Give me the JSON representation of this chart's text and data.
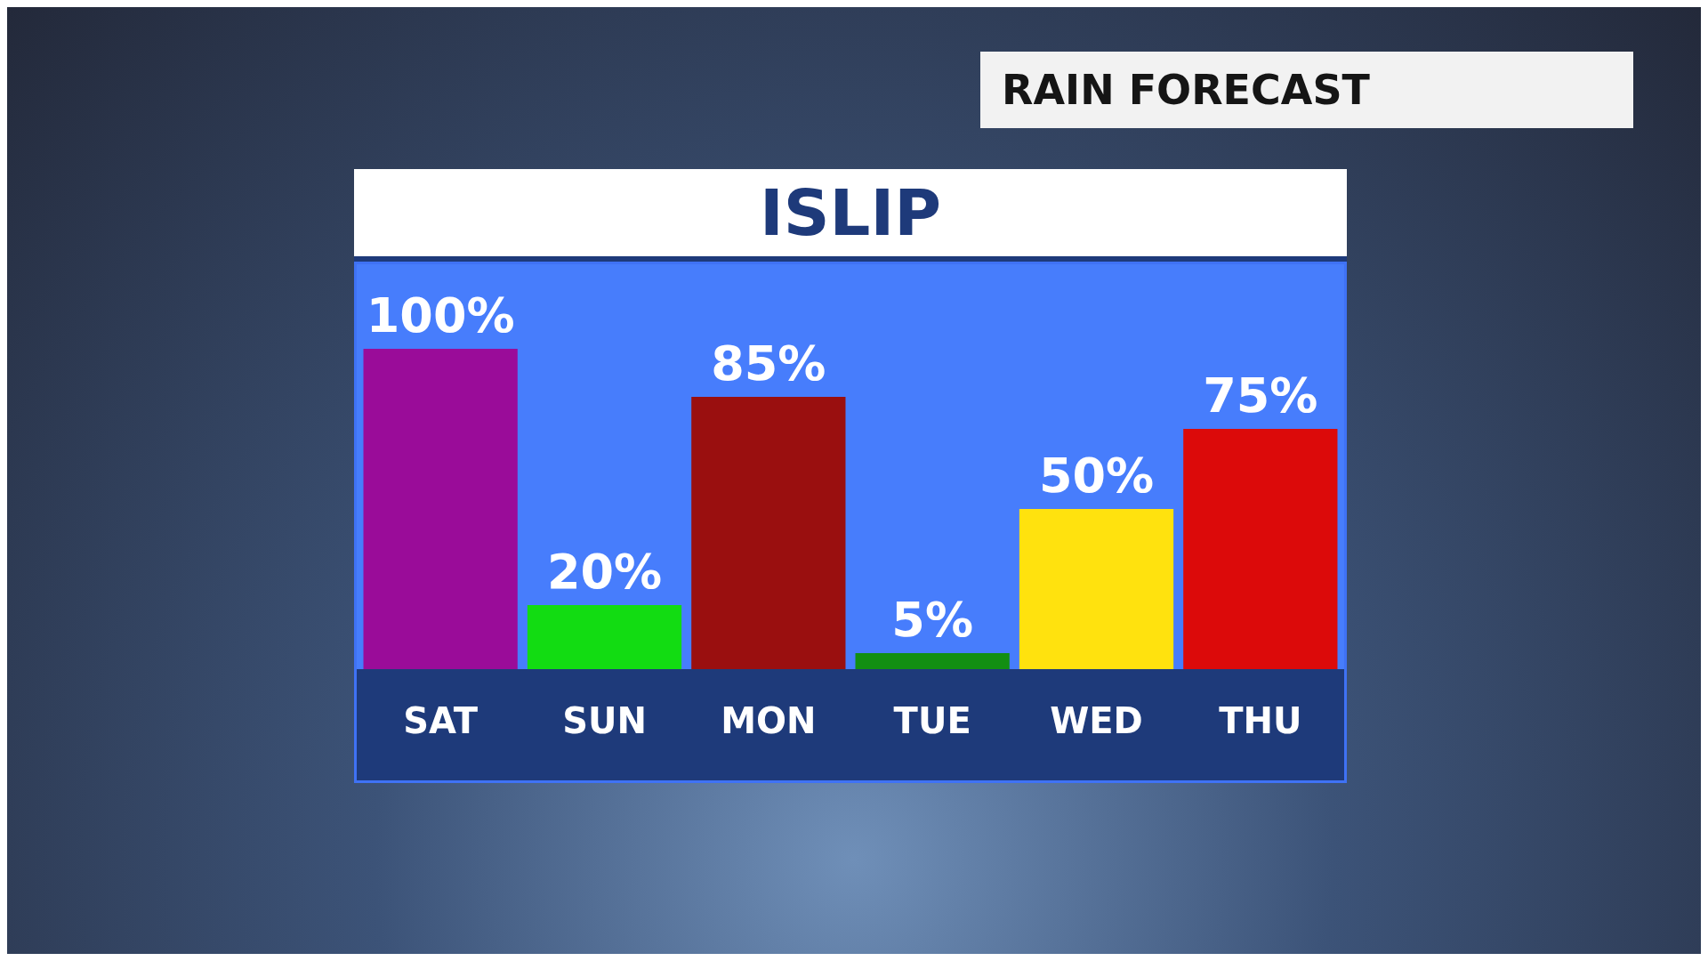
{
  "chart_data": {
    "type": "bar",
    "title": "ISLIP",
    "subtitle": "RAIN FORECAST",
    "categories": [
      "SAT",
      "SUN",
      "MON",
      "TUE",
      "WED",
      "THU"
    ],
    "values": [
      100,
      20,
      85,
      5,
      50,
      75
    ],
    "value_labels": [
      "100%",
      "20%",
      "85%",
      "5%",
      "50%",
      "75%"
    ],
    "colors": [
      "#9a0c99",
      "#12dc12",
      "#9a0f0f",
      "#128f12",
      "#ffe20e",
      "#dc0a0a"
    ],
    "grid": false,
    "legend": false
  }
}
